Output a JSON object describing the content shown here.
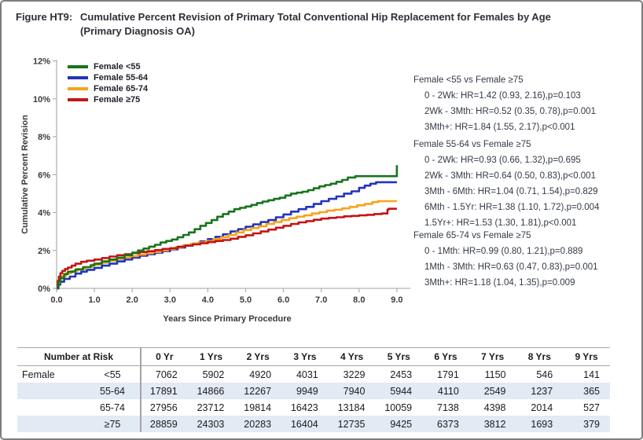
{
  "title": {
    "label": "Figure HT9:",
    "line1": "Cumulative Percent Revision of Primary Total Conventional Hip Replacement for Females by Age",
    "line2": "(Primary Diagnosis OA)"
  },
  "chart_data": {
    "type": "line",
    "step": true,
    "xlabel": "Years Since Primary Procedure",
    "ylabel": "Cumulative Percent Revision",
    "xlim": [
      0,
      9
    ],
    "ylim": [
      0,
      12
    ],
    "xticks": [
      "0.0",
      "1.0",
      "2.0",
      "3.0",
      "4.0",
      "5.0",
      "6.0",
      "7.0",
      "8.0",
      "9.0"
    ],
    "yticks": [
      "0%",
      "2%",
      "4%",
      "6%",
      "8%",
      "10%",
      "12%"
    ],
    "grid": false,
    "legend_position": "top-left",
    "series": [
      {
        "name": "Female <55",
        "color": "#17741c",
        "points": [
          [
            0,
            0
          ],
          [
            0.05,
            0.35
          ],
          [
            0.1,
            0.55
          ],
          [
            0.2,
            0.75
          ],
          [
            0.3,
            0.88
          ],
          [
            0.5,
            1.0
          ],
          [
            0.7,
            1.12
          ],
          [
            0.9,
            1.22
          ],
          [
            1.0,
            1.3
          ],
          [
            1.2,
            1.42
          ],
          [
            1.4,
            1.52
          ],
          [
            1.6,
            1.62
          ],
          [
            1.8,
            1.75
          ],
          [
            2.0,
            1.88
          ],
          [
            2.15,
            2.0
          ],
          [
            2.3,
            2.1
          ],
          [
            2.45,
            2.2
          ],
          [
            2.6,
            2.3
          ],
          [
            2.75,
            2.42
          ],
          [
            2.9,
            2.5
          ],
          [
            3.05,
            2.58
          ],
          [
            3.2,
            2.7
          ],
          [
            3.35,
            2.82
          ],
          [
            3.5,
            2.95
          ],
          [
            3.65,
            3.12
          ],
          [
            3.8,
            3.3
          ],
          [
            3.95,
            3.45
          ],
          [
            4.1,
            3.6
          ],
          [
            4.25,
            3.78
          ],
          [
            4.4,
            3.92
          ],
          [
            4.55,
            4.05
          ],
          [
            4.7,
            4.18
          ],
          [
            4.85,
            4.25
          ],
          [
            5.0,
            4.32
          ],
          [
            5.15,
            4.4
          ],
          [
            5.3,
            4.5
          ],
          [
            5.45,
            4.58
          ],
          [
            5.6,
            4.65
          ],
          [
            5.75,
            4.72
          ],
          [
            5.9,
            4.78
          ],
          [
            6.05,
            4.9
          ],
          [
            6.2,
            5.0
          ],
          [
            6.35,
            5.05
          ],
          [
            6.5,
            5.1
          ],
          [
            6.65,
            5.18
          ],
          [
            6.8,
            5.28
          ],
          [
            6.95,
            5.38
          ],
          [
            7.1,
            5.45
          ],
          [
            7.25,
            5.52
          ],
          [
            7.4,
            5.62
          ],
          [
            7.55,
            5.72
          ],
          [
            7.7,
            5.85
          ],
          [
            7.9,
            5.92
          ],
          [
            8.9,
            5.92
          ],
          [
            9.0,
            6.5
          ]
        ]
      },
      {
        "name": "Female 55-64",
        "color": "#2233bd",
        "points": [
          [
            0,
            0
          ],
          [
            0.05,
            0.2
          ],
          [
            0.1,
            0.35
          ],
          [
            0.2,
            0.5
          ],
          [
            0.35,
            0.62
          ],
          [
            0.5,
            0.78
          ],
          [
            0.65,
            0.88
          ],
          [
            0.8,
            0.98
          ],
          [
            1.0,
            1.08
          ],
          [
            1.2,
            1.2
          ],
          [
            1.4,
            1.3
          ],
          [
            1.6,
            1.42
          ],
          [
            1.8,
            1.52
          ],
          [
            2.0,
            1.62
          ],
          [
            2.2,
            1.72
          ],
          [
            2.4,
            1.8
          ],
          [
            2.6,
            1.88
          ],
          [
            2.8,
            1.96
          ],
          [
            3.0,
            2.05
          ],
          [
            3.2,
            2.15
          ],
          [
            3.4,
            2.25
          ],
          [
            3.6,
            2.36
          ],
          [
            3.8,
            2.48
          ],
          [
            4.0,
            2.6
          ],
          [
            4.2,
            2.72
          ],
          [
            4.4,
            2.85
          ],
          [
            4.6,
            3.0
          ],
          [
            4.8,
            3.12
          ],
          [
            5.0,
            3.25
          ],
          [
            5.2,
            3.38
          ],
          [
            5.4,
            3.5
          ],
          [
            5.6,
            3.6
          ],
          [
            5.8,
            3.75
          ],
          [
            6.0,
            3.9
          ],
          [
            6.2,
            4.05
          ],
          [
            6.4,
            4.18
          ],
          [
            6.6,
            4.3
          ],
          [
            6.8,
            4.45
          ],
          [
            7.0,
            4.6
          ],
          [
            7.2,
            4.72
          ],
          [
            7.4,
            4.85
          ],
          [
            7.6,
            5.0
          ],
          [
            7.8,
            5.12
          ],
          [
            8.0,
            5.3
          ],
          [
            8.15,
            5.42
          ],
          [
            8.3,
            5.52
          ],
          [
            8.45,
            5.6
          ],
          [
            9.0,
            5.6
          ]
        ]
      },
      {
        "name": "Female 65-74",
        "color": "#f7a31c",
        "points": [
          [
            0,
            0
          ],
          [
            0.04,
            0.3
          ],
          [
            0.08,
            0.5
          ],
          [
            0.15,
            0.65
          ],
          [
            0.25,
            0.8
          ],
          [
            0.4,
            0.92
          ],
          [
            0.55,
            1.02
          ],
          [
            0.75,
            1.12
          ],
          [
            0.95,
            1.25
          ],
          [
            1.15,
            1.35
          ],
          [
            1.35,
            1.45
          ],
          [
            1.55,
            1.55
          ],
          [
            1.75,
            1.62
          ],
          [
            1.95,
            1.7
          ],
          [
            2.15,
            1.78
          ],
          [
            2.35,
            1.85
          ],
          [
            2.55,
            1.92
          ],
          [
            2.75,
            2.0
          ],
          [
            2.95,
            2.08
          ],
          [
            3.15,
            2.18
          ],
          [
            3.35,
            2.28
          ],
          [
            3.55,
            2.35
          ],
          [
            3.75,
            2.42
          ],
          [
            3.95,
            2.5
          ],
          [
            4.15,
            2.6
          ],
          [
            4.35,
            2.7
          ],
          [
            4.55,
            2.82
          ],
          [
            4.75,
            2.95
          ],
          [
            4.95,
            3.08
          ],
          [
            5.15,
            3.18
          ],
          [
            5.35,
            3.28
          ],
          [
            5.55,
            3.4
          ],
          [
            5.75,
            3.5
          ],
          [
            5.95,
            3.6
          ],
          [
            6.15,
            3.7
          ],
          [
            6.35,
            3.78
          ],
          [
            6.55,
            3.85
          ],
          [
            6.75,
            3.95
          ],
          [
            6.95,
            4.02
          ],
          [
            7.15,
            4.1
          ],
          [
            7.35,
            4.15
          ],
          [
            7.55,
            4.22
          ],
          [
            7.75,
            4.3
          ],
          [
            7.95,
            4.38
          ],
          [
            8.15,
            4.45
          ],
          [
            8.35,
            4.55
          ],
          [
            8.5,
            4.6
          ],
          [
            9.0,
            4.6
          ]
        ]
      },
      {
        "name": "Female ≥75",
        "color": "#c41414",
        "points": [
          [
            0,
            0
          ],
          [
            0.03,
            0.4
          ],
          [
            0.06,
            0.62
          ],
          [
            0.1,
            0.8
          ],
          [
            0.15,
            0.92
          ],
          [
            0.22,
            1.02
          ],
          [
            0.3,
            1.1
          ],
          [
            0.4,
            1.2
          ],
          [
            0.5,
            1.3
          ],
          [
            0.65,
            1.4
          ],
          [
            0.8,
            1.46
          ],
          [
            1.0,
            1.52
          ],
          [
            1.2,
            1.6
          ],
          [
            1.4,
            1.68
          ],
          [
            1.6,
            1.75
          ],
          [
            1.8,
            1.8
          ],
          [
            2.0,
            1.86
          ],
          [
            2.2,
            1.92
          ],
          [
            2.4,
            1.96
          ],
          [
            2.6,
            2.02
          ],
          [
            2.8,
            2.08
          ],
          [
            3.0,
            2.12
          ],
          [
            3.2,
            2.2
          ],
          [
            3.4,
            2.26
          ],
          [
            3.6,
            2.32
          ],
          [
            3.8,
            2.38
          ],
          [
            4.0,
            2.44
          ],
          [
            4.2,
            2.5
          ],
          [
            4.4,
            2.55
          ],
          [
            4.6,
            2.62
          ],
          [
            4.8,
            2.72
          ],
          [
            5.0,
            2.8
          ],
          [
            5.2,
            2.9
          ],
          [
            5.4,
            3.0
          ],
          [
            5.6,
            3.1
          ],
          [
            5.8,
            3.2
          ],
          [
            6.0,
            3.3
          ],
          [
            6.2,
            3.4
          ],
          [
            6.4,
            3.48
          ],
          [
            6.6,
            3.55
          ],
          [
            6.8,
            3.62
          ],
          [
            7.0,
            3.68
          ],
          [
            7.2,
            3.72
          ],
          [
            7.4,
            3.75
          ],
          [
            7.6,
            3.8
          ],
          [
            7.8,
            3.82
          ],
          [
            8.0,
            3.85
          ],
          [
            8.2,
            3.88
          ],
          [
            8.4,
            3.92
          ],
          [
            8.6,
            3.95
          ],
          [
            8.75,
            4.15
          ],
          [
            8.78,
            4.2
          ],
          [
            9.0,
            4.2
          ]
        ]
      }
    ]
  },
  "annotations": {
    "groups": [
      {
        "header": "Female <55 vs Female ≥75",
        "lines": [
          "0 - 2Wk: HR=1.42 (0.93, 2.16),p=0.103",
          "2Wk - 3Mth: HR=0.52 (0.35, 0.78),p=0.001",
          "3Mth+: HR=1.84 (1.55, 2.17),p<0.001"
        ]
      },
      {
        "header": "Female 55-64 vs Female ≥75",
        "lines": [
          "0 - 2Wk: HR=0.93 (0.66, 1.32),p=0.695",
          "2Wk - 3Mth: HR=0.64 (0.50, 0.83),p<0.001",
          "3Mth - 6Mth: HR=1.04 (0.71, 1.54),p=0.829",
          "6Mth - 1.5Yr: HR=1.38 (1.10, 1.72),p=0.004",
          "1.5Yr+: HR=1.53 (1.30, 1.81),p<0.001"
        ]
      },
      {
        "header": "Female 65-74 vs Female ≥75",
        "lines": [
          "0 - 1Mth: HR=0.99 (0.80, 1.21),p=0.889",
          "1Mth - 3Mth: HR=0.63 (0.47, 0.83),p=0.001",
          "3Mth+: HR=1.18 (1.04, 1.35),p=0.009"
        ]
      }
    ]
  },
  "risk_table": {
    "corner": "Number at Risk",
    "col_headers": [
      "0 Yr",
      "1 Yrs",
      "2 Yrs",
      "3 Yrs",
      "4 Yrs",
      "5 Yrs",
      "6 Yrs",
      "7 Yrs",
      "8 Yrs",
      "9 Yrs"
    ],
    "rows": [
      {
        "group": "Female",
        "age": "<55",
        "values": [
          "7062",
          "5902",
          "4920",
          "4031",
          "3229",
          "2453",
          "1791",
          "1150",
          "546",
          "141"
        ]
      },
      {
        "group": "",
        "age": "55-64",
        "values": [
          "17891",
          "14866",
          "12267",
          "9949",
          "7940",
          "5944",
          "4110",
          "2549",
          "1237",
          "365"
        ]
      },
      {
        "group": "",
        "age": "65-74",
        "values": [
          "27956",
          "23712",
          "19814",
          "16423",
          "13184",
          "10059",
          "7138",
          "4398",
          "2014",
          "527"
        ]
      },
      {
        "group": "",
        "age": "≥75",
        "values": [
          "28859",
          "24303",
          "20283",
          "16404",
          "12735",
          "9425",
          "6373",
          "3812",
          "1693",
          "379"
        ]
      }
    ]
  }
}
